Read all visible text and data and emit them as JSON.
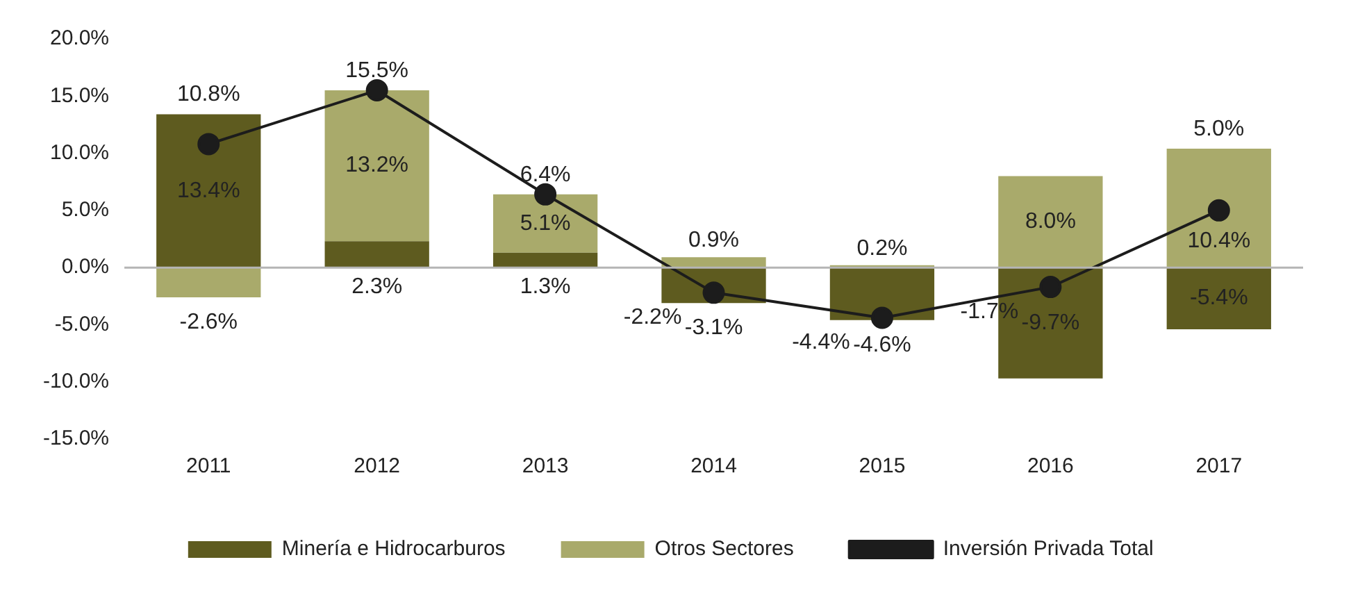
{
  "chart_data": {
    "type": "bar",
    "stacked": true,
    "categories": [
      "2011",
      "2012",
      "2013",
      "2014",
      "2015",
      "2016",
      "2017"
    ],
    "series": [
      {
        "name": "Minería e Hidrocarburos",
        "color": "#5e5b1f",
        "values": [
          13.4,
          2.3,
          1.3,
          -3.1,
          -4.6,
          -9.7,
          -5.4
        ],
        "value_labels": [
          "13.4%",
          "2.3%",
          "1.3%",
          "-3.1%",
          "-4.6%",
          "-9.7%",
          "-5.4%"
        ]
      },
      {
        "name": "Otros Sectores",
        "color": "#a9aa6b",
        "values": [
          -2.6,
          13.2,
          5.1,
          0.9,
          0.2,
          8.0,
          10.4
        ],
        "value_labels": [
          "-2.6%",
          "13.2%",
          "5.1%",
          "0.9%",
          "0.2%",
          "8.0%",
          "10.4%"
        ]
      },
      {
        "name": "Inversión Privada Total",
        "type": "line",
        "color": "#1c1c1c",
        "marker": "circle",
        "values": [
          10.8,
          15.5,
          6.4,
          -2.2,
          -4.4,
          -1.7,
          5.0
        ],
        "value_labels": [
          "10.8%",
          "15.5%",
          "6.4%",
          "-2.2%",
          "-4.4%",
          "-1.7%",
          "5.0%"
        ]
      }
    ],
    "ylim": [
      -15,
      20
    ],
    "yticks": [
      {
        "value": -15,
        "label": "-15.0%"
      },
      {
        "value": -10,
        "label": "-10.0%"
      },
      {
        "value": -5,
        "label": "-5.0%"
      },
      {
        "value": 0,
        "label": "0.0%"
      },
      {
        "value": 5,
        "label": "5.0%"
      },
      {
        "value": 10,
        "label": "10.0%"
      },
      {
        "value": 15,
        "label": "15.0%"
      },
      {
        "value": 20,
        "label": "20.0%"
      }
    ],
    "ref_lines": [
      {
        "axis": "y",
        "value": 0,
        "color": "#b5b5b5"
      }
    ],
    "grid": false,
    "legend": "bottom"
  }
}
